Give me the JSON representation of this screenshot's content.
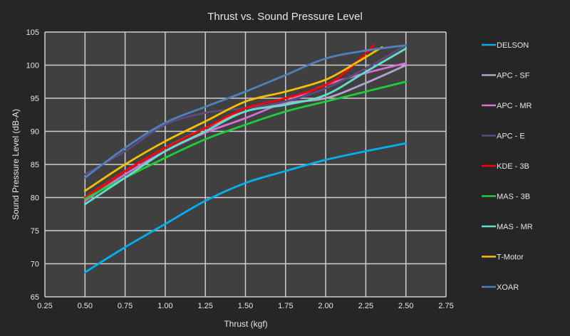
{
  "chart_data": {
    "type": "line",
    "title": "Thrust vs. Sound Pressure Level",
    "xlabel": "Thrust (kgf)",
    "ylabel": "Sound Pressure Level (dB-A)",
    "xlim": [
      0.25,
      2.75
    ],
    "ylim": [
      65,
      105
    ],
    "xticks": [
      "0.25",
      "0.50",
      "0.75",
      "1.00",
      "1.25",
      "1.50",
      "1.75",
      "2.00",
      "2.25",
      "2.50",
      "2.75"
    ],
    "yticks": [
      "65",
      "70",
      "75",
      "80",
      "85",
      "90",
      "95",
      "100",
      "105"
    ],
    "grid": true,
    "legend_position": "right",
    "series": [
      {
        "name": "DELSON",
        "color": "#00B0F0",
        "x": [
          0.5,
          0.75,
          1.0,
          1.25,
          1.5,
          1.75,
          2.0,
          2.25,
          2.5
        ],
        "y": [
          68.7,
          72.5,
          76.0,
          79.5,
          82.2,
          84.0,
          85.7,
          87.0,
          88.2
        ]
      },
      {
        "name": "APC - SF",
        "color": "#B3A2C7",
        "x": [
          0.5,
          0.75,
          1.0,
          1.25,
          1.5,
          1.75,
          2.0,
          2.25,
          2.5
        ],
        "y": [
          80.0,
          84.0,
          87.5,
          90.5,
          93.0,
          94.3,
          95.0,
          97.3,
          100.0
        ]
      },
      {
        "name": "APC - MR",
        "color": "#D670D6",
        "x": [
          0.5,
          0.75,
          1.0,
          1.25,
          1.5,
          1.75,
          2.0,
          2.25,
          2.5
        ],
        "y": [
          79.5,
          83.5,
          87.0,
          89.8,
          92.0,
          94.5,
          97.0,
          98.8,
          100.3
        ]
      },
      {
        "name": "APC - E",
        "color": "#604A7B",
        "x": [
          0.5,
          0.75,
          1.0,
          1.25,
          1.5,
          1.75,
          2.0,
          2.25,
          2.5
        ],
        "y": [
          83.5,
          87.0,
          91.0,
          92.8,
          93.5,
          94.5,
          96.5,
          99.5,
          103.0
        ]
      },
      {
        "name": "KDE - 3B",
        "color": "#FF0000",
        "x": [
          0.5,
          0.75,
          1.0,
          1.25,
          1.5,
          1.75,
          2.0,
          2.15,
          2.3
        ],
        "y": [
          80.0,
          84.0,
          87.5,
          90.5,
          93.5,
          95.0,
          97.0,
          99.5,
          103.0
        ]
      },
      {
        "name": "MAS - 3B",
        "color": "#1FCC3A",
        "x": [
          0.5,
          0.75,
          1.0,
          1.25,
          1.5,
          1.75,
          2.0,
          2.25,
          2.5
        ],
        "y": [
          79.8,
          83.0,
          86.0,
          88.8,
          91.0,
          93.0,
          94.5,
          96.0,
          97.5
        ]
      },
      {
        "name": "MAS - MR",
        "color": "#66DDCC",
        "x": [
          0.5,
          0.75,
          1.0,
          1.25,
          1.5,
          1.75,
          2.0,
          2.25,
          2.5
        ],
        "y": [
          79.0,
          83.0,
          87.0,
          90.0,
          93.0,
          94.0,
          95.5,
          99.0,
          102.5
        ]
      },
      {
        "name": "T-Motor",
        "color": "#F5C000",
        "x": [
          0.5,
          0.75,
          1.0,
          1.25,
          1.5,
          1.75,
          2.0,
          2.2,
          2.35
        ],
        "y": [
          81.0,
          85.0,
          88.5,
          91.5,
          94.5,
          96.0,
          97.8,
          100.5,
          102.7
        ]
      },
      {
        "name": "XOAR",
        "color": "#4F81BD",
        "x": [
          0.5,
          0.75,
          1.0,
          1.25,
          1.5,
          1.75,
          2.0,
          2.25,
          2.5
        ],
        "y": [
          83.0,
          87.5,
          91.3,
          93.7,
          96.0,
          98.5,
          101.0,
          102.2,
          103.0
        ]
      }
    ]
  }
}
